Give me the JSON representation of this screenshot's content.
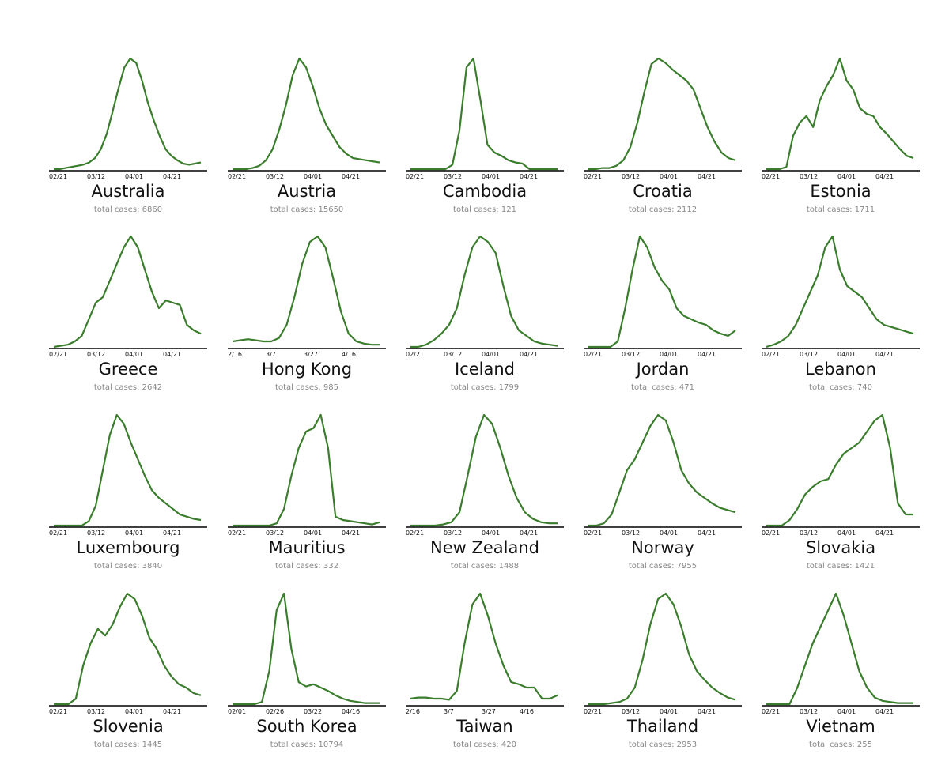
{
  "style": {
    "line_color": "#3a7d2c",
    "axis_color": "#000000",
    "caption_color": "#888888"
  },
  "chart_data": [
    {
      "type": "line",
      "title": "Australia",
      "caption": "total cases: 6860",
      "x_ticks": [
        "02/21",
        "03/12",
        "04/01",
        "04/21"
      ],
      "values": [
        0,
        0,
        0.01,
        0.02,
        0.03,
        0.04,
        0.06,
        0.1,
        0.18,
        0.32,
        0.52,
        0.73,
        0.92,
        1,
        0.96,
        0.8,
        0.6,
        0.44,
        0.3,
        0.18,
        0.12,
        0.08,
        0.05,
        0.04,
        0.05,
        0.06
      ]
    },
    {
      "type": "line",
      "title": "Austria",
      "caption": "total cases: 15650",
      "x_ticks": [
        "02/21",
        "03/12",
        "04/01",
        "04/21"
      ],
      "values": [
        0,
        0,
        0,
        0.01,
        0.03,
        0.08,
        0.18,
        0.36,
        0.58,
        0.85,
        1,
        0.92,
        0.75,
        0.55,
        0.4,
        0.3,
        0.2,
        0.14,
        0.1,
        0.09,
        0.08,
        0.07,
        0.06
      ]
    },
    {
      "type": "line",
      "title": "Cambodia",
      "caption": "total cases: 121",
      "x_ticks": [
        "02/21",
        "03/12",
        "04/01",
        "04/21"
      ],
      "values": [
        0,
        0,
        0,
        0,
        0,
        0,
        0.04,
        0.35,
        0.92,
        1,
        0.62,
        0.22,
        0.15,
        0.12,
        0.08,
        0.06,
        0.05,
        0,
        0,
        0,
        0,
        0
      ]
    },
    {
      "type": "line",
      "title": "Croatia",
      "caption": "total cases: 2112",
      "x_ticks": [
        "02/21",
        "03/12",
        "04/01",
        "04/21"
      ],
      "values": [
        0,
        0,
        0.01,
        0.01,
        0.03,
        0.08,
        0.2,
        0.42,
        0.7,
        0.95,
        1,
        0.96,
        0.9,
        0.85,
        0.8,
        0.72,
        0.55,
        0.38,
        0.25,
        0.15,
        0.1,
        0.08
      ]
    },
    {
      "type": "line",
      "title": "Estonia",
      "caption": "total cases: 1711",
      "x_ticks": [
        "02/21",
        "03/12",
        "04/01",
        "04/21"
      ],
      "values": [
        0,
        0,
        0,
        0.02,
        0.3,
        0.42,
        0.48,
        0.38,
        0.62,
        0.75,
        0.85,
        1,
        0.8,
        0.72,
        0.55,
        0.5,
        0.48,
        0.38,
        0.32,
        0.25,
        0.18,
        0.12,
        0.1
      ]
    },
    {
      "type": "line",
      "title": "Greece",
      "caption": "total cases: 2642",
      "x_ticks": [
        "02/21",
        "03/12",
        "04/01",
        "04/21"
      ],
      "values": [
        0,
        0.01,
        0.02,
        0.05,
        0.1,
        0.25,
        0.4,
        0.45,
        0.6,
        0.75,
        0.9,
        1,
        0.9,
        0.7,
        0.5,
        0.35,
        0.42,
        0.4,
        0.38,
        0.2,
        0.15,
        0.12
      ]
    },
    {
      "type": "line",
      "title": "Hong Kong",
      "caption": "total cases: 985",
      "x_ticks": [
        "2/16",
        "3/7",
        "3/27",
        "4/16"
      ],
      "values": [
        0.05,
        0.06,
        0.07,
        0.06,
        0.05,
        0.05,
        0.08,
        0.2,
        0.45,
        0.75,
        0.95,
        1,
        0.9,
        0.62,
        0.32,
        0.12,
        0.05,
        0.03,
        0.02,
        0.02
      ]
    },
    {
      "type": "line",
      "title": "Iceland",
      "caption": "total cases: 1799",
      "x_ticks": [
        "02/21",
        "03/12",
        "04/01",
        "04/21"
      ],
      "values": [
        0,
        0,
        0.02,
        0.06,
        0.12,
        0.2,
        0.35,
        0.65,
        0.9,
        1,
        0.95,
        0.85,
        0.55,
        0.28,
        0.15,
        0.1,
        0.05,
        0.03,
        0.02,
        0.01
      ]
    },
    {
      "type": "line",
      "title": "Jordan",
      "caption": "total cases: 471",
      "x_ticks": [
        "02/21",
        "03/12",
        "04/01",
        "04/21"
      ],
      "values": [
        0,
        0,
        0,
        0,
        0.05,
        0.35,
        0.7,
        1,
        0.9,
        0.72,
        0.6,
        0.52,
        0.35,
        0.28,
        0.25,
        0.22,
        0.2,
        0.15,
        0.12,
        0.1,
        0.15
      ]
    },
    {
      "type": "line",
      "title": "Lebanon",
      "caption": "total cases: 740",
      "x_ticks": [
        "02/21",
        "03/12",
        "04/01",
        "04/21"
      ],
      "values": [
        0,
        0.02,
        0.05,
        0.1,
        0.2,
        0.35,
        0.5,
        0.65,
        0.9,
        1,
        0.7,
        0.55,
        0.5,
        0.45,
        0.35,
        0.25,
        0.2,
        0.18,
        0.16,
        0.14,
        0.12
      ]
    },
    {
      "type": "line",
      "title": "Luxembourg",
      "caption": "total cases: 3840",
      "x_ticks": [
        "02/21",
        "03/12",
        "04/01",
        "04/21"
      ],
      "values": [
        0,
        0,
        0,
        0,
        0,
        0.04,
        0.18,
        0.5,
        0.82,
        1,
        0.92,
        0.75,
        0.6,
        0.45,
        0.32,
        0.25,
        0.2,
        0.15,
        0.1,
        0.08,
        0.06,
        0.05
      ]
    },
    {
      "type": "line",
      "title": "Mauritius",
      "caption": "total cases: 332",
      "x_ticks": [
        "02/21",
        "03/12",
        "04/01",
        "04/21"
      ],
      "values": [
        0,
        0,
        0,
        0,
        0,
        0,
        0.02,
        0.15,
        0.45,
        0.7,
        0.85,
        0.88,
        1,
        0.7,
        0.08,
        0.05,
        0.04,
        0.03,
        0.02,
        0.01,
        0.03
      ]
    },
    {
      "type": "line",
      "title": "New Zealand",
      "caption": "total cases: 1488",
      "x_ticks": [
        "02/21",
        "03/12",
        "04/01",
        "04/21"
      ],
      "values": [
        0,
        0,
        0,
        0,
        0.01,
        0.03,
        0.12,
        0.45,
        0.8,
        1,
        0.92,
        0.7,
        0.45,
        0.25,
        0.12,
        0.06,
        0.03,
        0.02,
        0.02
      ]
    },
    {
      "type": "line",
      "title": "Norway",
      "caption": "total cases: 7955",
      "x_ticks": [
        "02/21",
        "03/12",
        "04/01",
        "04/21"
      ],
      "values": [
        0,
        0,
        0.02,
        0.1,
        0.3,
        0.5,
        0.6,
        0.75,
        0.9,
        1,
        0.95,
        0.75,
        0.5,
        0.38,
        0.3,
        0.25,
        0.2,
        0.16,
        0.14,
        0.12
      ]
    },
    {
      "type": "line",
      "title": "Slovakia",
      "caption": "total cases: 1421",
      "x_ticks": [
        "02/21",
        "03/12",
        "04/01",
        "04/21"
      ],
      "values": [
        0,
        0,
        0,
        0.05,
        0.15,
        0.28,
        0.35,
        0.4,
        0.42,
        0.55,
        0.65,
        0.7,
        0.75,
        0.85,
        0.95,
        1,
        0.7,
        0.2,
        0.1,
        0.1
      ]
    },
    {
      "type": "line",
      "title": "Slovenia",
      "caption": "total cases: 1445",
      "x_ticks": [
        "02/21",
        "03/12",
        "04/01",
        "04/21"
      ],
      "values": [
        0,
        0,
        0,
        0.05,
        0.35,
        0.55,
        0.68,
        0.62,
        0.72,
        0.88,
        1,
        0.95,
        0.8,
        0.6,
        0.5,
        0.35,
        0.25,
        0.18,
        0.15,
        0.1,
        0.08
      ]
    },
    {
      "type": "line",
      "title": "South Korea",
      "caption": "total cases: 10794",
      "x_ticks": [
        "02/01",
        "02/26",
        "03/22",
        "04/16"
      ],
      "values": [
        0,
        0,
        0,
        0,
        0.02,
        0.3,
        0.85,
        1,
        0.5,
        0.2,
        0.16,
        0.18,
        0.15,
        0.12,
        0.08,
        0.05,
        0.03,
        0.02,
        0.01,
        0.01,
        0.01
      ]
    },
    {
      "type": "line",
      "title": "Taiwan",
      "caption": "total cases: 420",
      "x_ticks": [
        "2/16",
        "3/7",
        "3/27",
        "4/16"
      ],
      "values": [
        0.05,
        0.06,
        0.06,
        0.05,
        0.05,
        0.04,
        0.12,
        0.55,
        0.9,
        1,
        0.8,
        0.55,
        0.35,
        0.2,
        0.18,
        0.15,
        0.15,
        0.05,
        0.05,
        0.08
      ]
    },
    {
      "type": "line",
      "title": "Thailand",
      "caption": "total cases: 2953",
      "x_ticks": [
        "02/21",
        "03/12",
        "04/01",
        "04/21"
      ],
      "values": [
        0,
        0,
        0,
        0.01,
        0.02,
        0.05,
        0.15,
        0.4,
        0.72,
        0.95,
        1,
        0.9,
        0.7,
        0.45,
        0.3,
        0.22,
        0.15,
        0.1,
        0.06,
        0.04
      ]
    },
    {
      "type": "line",
      "title": "Vietnam",
      "caption": "total cases: 255",
      "x_ticks": [
        "02/21",
        "03/12",
        "04/01",
        "04/21"
      ],
      "values": [
        0,
        0,
        0,
        0,
        0.15,
        0.35,
        0.55,
        0.7,
        0.85,
        1,
        0.8,
        0.55,
        0.3,
        0.15,
        0.06,
        0.03,
        0.02,
        0.01,
        0.01,
        0.01
      ]
    }
  ]
}
